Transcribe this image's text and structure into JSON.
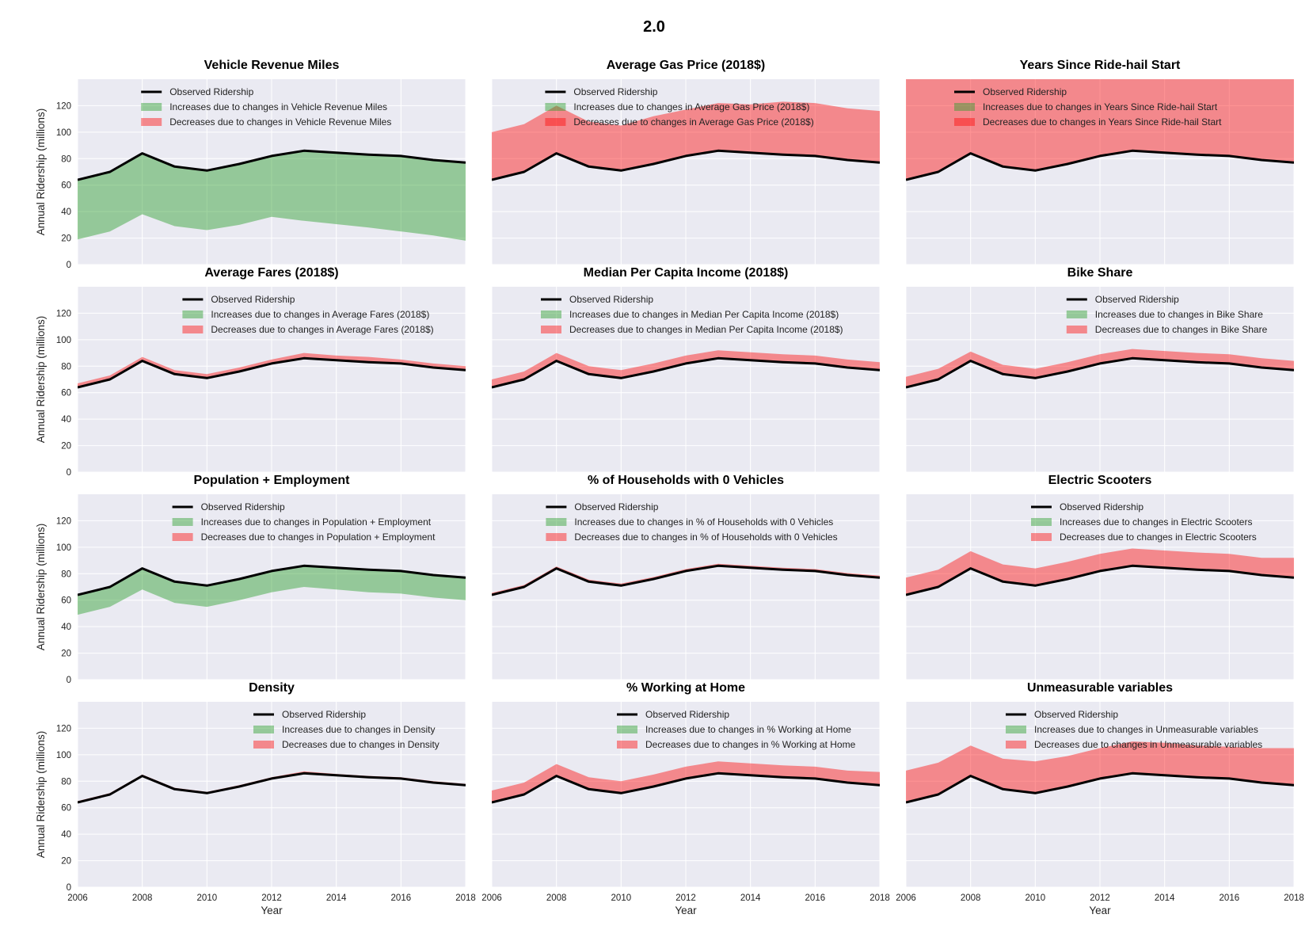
{
  "figure": {
    "suptitle": "2.0"
  },
  "chart_data": {
    "type": "area",
    "layout_grid": "4x3",
    "x": [
      2006,
      2007,
      2008,
      2009,
      2010,
      2011,
      2012,
      2013,
      2014,
      2015,
      2016,
      2017,
      2018
    ],
    "xlim": [
      2006,
      2018
    ],
    "xticks": [
      2006,
      2008,
      2010,
      2012,
      2014,
      2016,
      2018
    ],
    "ylim": [
      0,
      140
    ],
    "yticks": [
      0,
      20,
      40,
      60,
      80,
      100,
      120
    ],
    "xlabel": "Year",
    "ylabel": "Annual Ridership (millions)",
    "observed_label": "Observed Ridership",
    "observed": [
      64,
      70,
      84,
      74,
      71,
      76,
      82,
      86,
      84.5,
      83,
      82,
      79,
      77
    ],
    "colors": {
      "observed": "#000000",
      "increase": "#2ca02c",
      "decrease": "#ff0000",
      "background": "#eaeaf2",
      "grid": "#ffffff"
    },
    "panels": [
      {
        "title": "Vehicle Revenue Miles",
        "legend": [
          "Observed Ridership",
          "Increases due to changes in Vehicle Revenue Miles",
          "Decreases due to changes in Vehicle Revenue Miles"
        ],
        "legend_loc": "upper-center",
        "fill": "increase",
        "bound": [
          19,
          25,
          38,
          29,
          26,
          30,
          36,
          33,
          30.5,
          28,
          25,
          22,
          18
        ]
      },
      {
        "title": "Average Gas Price (2018$)",
        "legend": [
          "Observed Ridership",
          "Increases due to changes in Average Gas Price (2018$)",
          "Decreases due to changes in Average Gas Price (2018$)"
        ],
        "legend_loc": "upper-center",
        "fill": "decrease",
        "bound": [
          100,
          106,
          120,
          108,
          105,
          112,
          117,
          122,
          121,
          123,
          122,
          118,
          116
        ]
      },
      {
        "title": "Years Since Ride-hail Start",
        "legend": [
          "Observed Ridership",
          "Increases due to changes in Years Since Ride-hail Start",
          "Decreases due to changes in Years Since Ride-hail Start"
        ],
        "legend_loc": "upper-center",
        "fill": "decrease",
        "bound": [
          150,
          150,
          150,
          150,
          150,
          150,
          150,
          150,
          150,
          150,
          150,
          150,
          150
        ]
      },
      {
        "title": "Average Fares (2018$)",
        "legend": [
          "Observed Ridership",
          "Increases due to changes in Average Fares (2018$)",
          "Decreases due to changes in Average Fares (2018$)"
        ],
        "legend_loc": "upper-right",
        "fill": "decrease",
        "bound": [
          67,
          73,
          87,
          77,
          74,
          79,
          85,
          90,
          88,
          87,
          85,
          82,
          80
        ]
      },
      {
        "title": "Median Per Capita Income (2018$)",
        "legend": [
          "Observed Ridership",
          "Increases due to changes in Median Per Capita Income (2018$)",
          "Decreases due to changes in Median Per Capita Income (2018$)"
        ],
        "legend_loc": "upper-right",
        "fill": "decrease",
        "bound": [
          70,
          76,
          90,
          80,
          77,
          82,
          88,
          92,
          90.5,
          89,
          88,
          85,
          83
        ]
      },
      {
        "title": "Bike Share",
        "legend": [
          "Observed Ridership",
          "Increases due to changes in Bike Share",
          "Decreases due to changes in Bike Share"
        ],
        "legend_loc": "upper-right",
        "fill": "decrease",
        "bound": [
          72,
          78,
          91,
          81,
          78,
          83,
          89,
          93,
          91.5,
          90,
          89,
          86,
          84
        ]
      },
      {
        "title": "Population + Employment",
        "legend": [
          "Observed Ridership",
          "Increases due to changes in Population + Employment",
          "Decreases due to changes in Population + Employment"
        ],
        "legend_loc": "upper-right",
        "fill": "increase",
        "bound": [
          49,
          55,
          68,
          58,
          55,
          60,
          66,
          70,
          68,
          66,
          65,
          62,
          60
        ]
      },
      {
        "title": "% of Households with 0 Vehicles",
        "legend": [
          "Observed Ridership",
          "Increases due to changes in % of Households with 0 Vehicles",
          "Decreases due to changes in % of Households with 0 Vehicles"
        ],
        "legend_loc": "upper-right",
        "fill": "decrease",
        "bound": [
          65.5,
          71.5,
          85.5,
          75.5,
          72.5,
          77.5,
          83.5,
          87.5,
          86,
          84.5,
          83.5,
          80.5,
          78.5
        ]
      },
      {
        "title": "Electric Scooters",
        "legend": [
          "Observed Ridership",
          "Increases due to changes in Electric Scooters",
          "Decreases due to changes in Electric Scooters"
        ],
        "legend_loc": "upper-right",
        "fill": "decrease",
        "bound": [
          77,
          83,
          97,
          87,
          84,
          89,
          95,
          99,
          97.5,
          96,
          95,
          92,
          92
        ]
      },
      {
        "title": "Density",
        "legend": [
          "Observed Ridership",
          "Increases due to changes in Density",
          "Decreases due to changes in Density"
        ],
        "legend_loc": "upper-right",
        "fill": "decrease",
        "bound": [
          65,
          71,
          85,
          75,
          72,
          77,
          83,
          87.5,
          85.5,
          84,
          83,
          80,
          78
        ]
      },
      {
        "title": "% Working at Home",
        "legend": [
          "Observed Ridership",
          "Increases due to changes in % Working at Home",
          "Decreases due to changes in % Working at Home"
        ],
        "legend_loc": "upper-right",
        "fill": "decrease",
        "bound": [
          73,
          79,
          93,
          83,
          80,
          85,
          91,
          95,
          93.5,
          92,
          91,
          88,
          87
        ]
      },
      {
        "title": "Unmeasurable variables",
        "legend": [
          "Observed Ridership",
          "Increases due to changes in Unmeasurable variables",
          "Decreases due to changes in Unmeasurable variables"
        ],
        "legend_loc": "upper-right",
        "fill": "decrease",
        "bound": [
          88,
          94,
          107,
          97,
          95,
          99,
          105,
          110,
          109,
          107,
          106,
          105,
          105
        ]
      }
    ]
  }
}
